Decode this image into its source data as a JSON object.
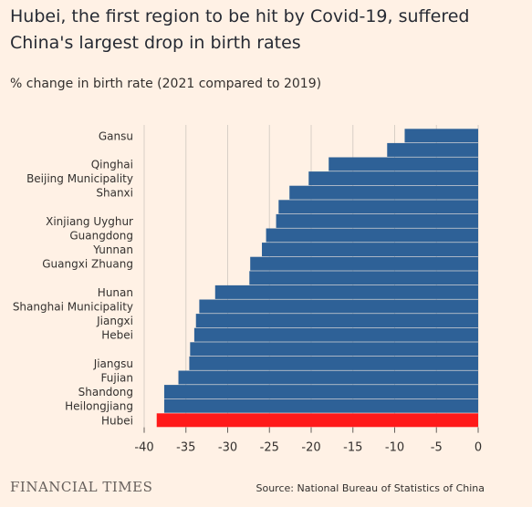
{
  "title": "Hubei, the first region to be hit by Covid-19, suffered China's largest drop in birth rates",
  "subtitle": "% change in birth rate (2021 compared to 2019)",
  "brand": "FINANCIAL TIMES",
  "source": "Source: National Bureau of Statistics of China",
  "colors": {
    "bar": "#2e6197",
    "highlight": "#ff1a1a",
    "background": "#fff1e5",
    "grid": "#d8cfc6"
  },
  "chart_data": {
    "type": "bar",
    "orientation": "horizontal",
    "xlim": [
      -40,
      0
    ],
    "xticks": [
      -40,
      -35,
      -30,
      -25,
      -20,
      -15,
      -10,
      -5,
      0
    ],
    "categories": [
      "Gansu",
      "",
      "Qinghai",
      "Beijing Municipality",
      "Shanxi",
      "",
      "Xinjiang Uyghur",
      "Guangdong",
      "Yunnan",
      "Guangxi Zhuang",
      "",
      "Hunan",
      "Shanghai Municipality",
      "Jiangxi",
      "Hebei",
      "",
      "Jiangsu",
      "Fujian",
      "Shandong",
      "Heilongjiang",
      "Hubei"
    ],
    "values": [
      -8.8,
      -10.9,
      -17.9,
      -20.3,
      -22.6,
      -23.9,
      -24.2,
      -25.4,
      -25.9,
      -27.3,
      -27.4,
      -31.5,
      -33.4,
      -33.8,
      -34.0,
      -34.5,
      -34.6,
      -35.9,
      -37.6,
      -37.6,
      -38.5
    ],
    "highlight": "Hubei"
  }
}
